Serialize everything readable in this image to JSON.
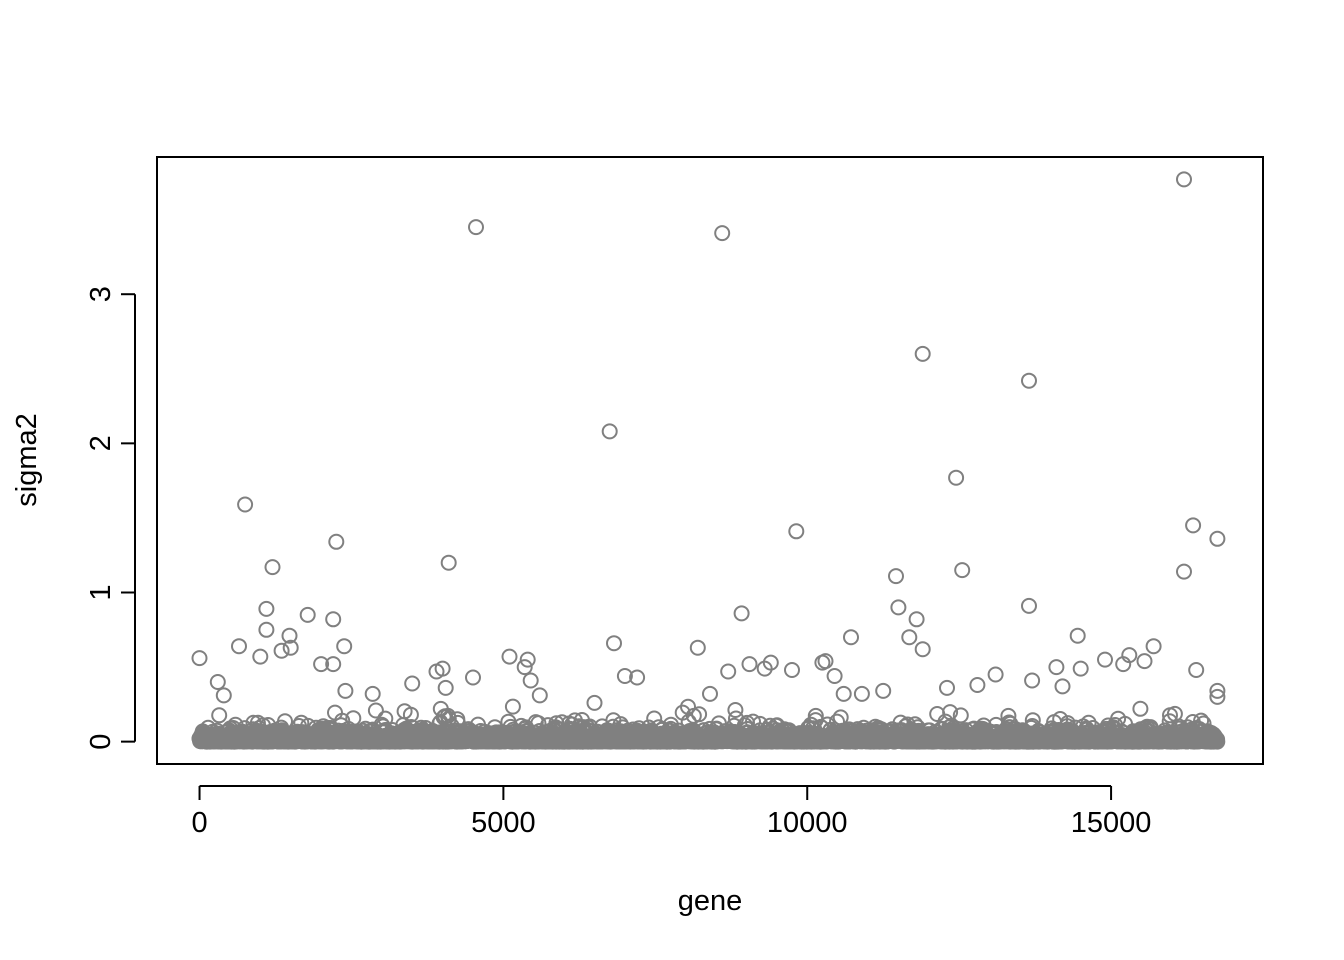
{
  "chart_data": {
    "type": "scatter",
    "title": "",
    "xlabel": "gene",
    "ylabel": "sigma2",
    "xlim": [
      -700,
      17500
    ],
    "ylim": [
      -0.15,
      3.92
    ],
    "x_ticks": [
      0,
      5000,
      10000,
      15000
    ],
    "y_ticks": [
      0,
      1,
      2,
      3
    ],
    "x_tick_labels": [
      "0",
      "5000",
      "10000",
      "15000"
    ],
    "y_tick_labels": [
      "0",
      "1",
      "2",
      "3"
    ],
    "grid": false,
    "legend": "none",
    "n_points_approx": 16800,
    "marker": "open-circle",
    "point_color": "#808080",
    "series": [
      {
        "x": [
          0,
          750,
          1100,
          1100,
          1200,
          1350,
          1480,
          1780,
          2200,
          2200,
          2250,
          2380,
          4100,
          4550,
          6750,
          6820,
          8200,
          8600,
          8920,
          9820,
          10300,
          10720,
          11460,
          11500,
          11680,
          11900,
          11900,
          12450,
          12550,
          13650,
          13650,
          13700,
          14450,
          15700,
          16200,
          16200,
          16350,
          16400,
          16750,
          650,
          1000,
          2000,
          2400,
          3500,
          3900,
          4000,
          4050,
          4500,
          5100,
          5350,
          5400,
          5450,
          7000,
          7200,
          8700,
          9050,
          9300,
          9750,
          10250,
          10450,
          10600,
          11250,
          11800,
          12300,
          13100,
          14100,
          14500,
          14900,
          15200,
          15300,
          16750,
          16750,
          300,
          400,
          1500,
          2850,
          5600,
          6500,
          8400,
          9400,
          10900,
          12800,
          14200,
          15550
        ],
        "y": [
          0.56,
          1.59,
          0.89,
          0.75,
          1.17,
          0.61,
          0.71,
          0.85,
          0.52,
          0.82,
          1.34,
          0.64,
          1.2,
          3.45,
          2.08,
          0.66,
          0.63,
          3.41,
          0.86,
          1.41,
          0.54,
          0.7,
          1.11,
          0.9,
          0.7,
          2.6,
          0.62,
          1.77,
          1.15,
          2.42,
          0.91,
          0.41,
          0.71,
          0.64,
          3.77,
          1.14,
          1.45,
          0.48,
          1.36,
          0.64,
          0.57,
          0.52,
          0.34,
          0.39,
          0.47,
          0.49,
          0.36,
          0.43,
          0.57,
          0.5,
          0.55,
          0.41,
          0.44,
          0.43,
          0.47,
          0.52,
          0.49,
          0.48,
          0.53,
          0.44,
          0.32,
          0.34,
          0.82,
          0.36,
          0.45,
          0.5,
          0.49,
          0.55,
          0.52,
          0.58,
          0.34,
          0.3,
          0.4,
          0.31,
          0.63,
          0.32,
          0.31,
          0.26,
          0.32,
          0.53,
          0.32,
          0.38,
          0.37,
          0.54
        ]
      }
    ]
  }
}
